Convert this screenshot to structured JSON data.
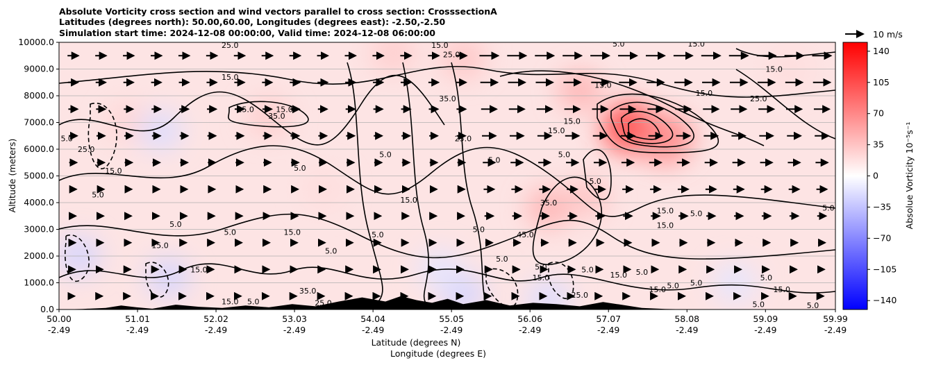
{
  "chart_data": {
    "type": "heatmap",
    "title_lines": [
      "Absolute Vorticity cross section and wind vectors parallel to cross section: CrosssectionA",
      "Latitudes (degrees north): 50.00,60.00, Longitudes (degrees east): -2.50,-2.50",
      "Simulation start time: 2024-12-08 00:00:00, Valid time: 2024-12-08 06:00:00"
    ],
    "xlabel_lines": [
      "Latitude (degrees N)",
      "Longitude (degrees E)"
    ],
    "ylabel": "Altitude (meters)",
    "x_ticks": [
      {
        "lat": "50.00",
        "lon": "-2.49"
      },
      {
        "lat": "51.01",
        "lon": "-2.49"
      },
      {
        "lat": "52.02",
        "lon": "-2.49"
      },
      {
        "lat": "53.03",
        "lon": "-2.49"
      },
      {
        "lat": "54.04",
        "lon": "-2.49"
      },
      {
        "lat": "55.05",
        "lon": "-2.49"
      },
      {
        "lat": "56.06",
        "lon": "-2.49"
      },
      {
        "lat": "57.07",
        "lon": "-2.49"
      },
      {
        "lat": "58.08",
        "lon": "-2.49"
      },
      {
        "lat": "59.09",
        "lon": "-2.49"
      },
      {
        "lat": "59.99",
        "lon": "-2.49"
      }
    ],
    "xlim": [
      50.0,
      59.99
    ],
    "y_ticks": [
      "0.0",
      "1000.0",
      "2000.0",
      "3000.0",
      "4000.0",
      "5000.0",
      "6000.0",
      "7000.0",
      "8000.0",
      "9000.0",
      "10000.0"
    ],
    "ylim": [
      0,
      10000
    ],
    "grid": "horizontal",
    "colorbar": {
      "label": "Absolue Vorticity 10⁻⁵s⁻¹",
      "ticks": [
        "140",
        "105",
        "70",
        "35",
        "0",
        "−35",
        "−70",
        "−105",
        "−140"
      ],
      "range": [
        -150,
        150
      ],
      "colormap": "bwr",
      "low_color": "#0000ff",
      "mid_color": "#ffffff",
      "high_color": "#ff0000"
    },
    "quiver_key": {
      "label": "10 m/s"
    },
    "vorticity_features": [
      {
        "lat": 57.35,
        "alt": 6800,
        "value": 110
      },
      {
        "lat": 57.8,
        "alt": 6400,
        "value": 70
      },
      {
        "lat": 56.7,
        "alt": 8200,
        "value": 45
      },
      {
        "lat": 56.3,
        "alt": 3800,
        "value": 45
      },
      {
        "lat": 56.8,
        "alt": 4200,
        "value": 35
      },
      {
        "lat": 54.3,
        "alt": 9600,
        "value": 30
      },
      {
        "lat": 55.2,
        "alt": 9400,
        "value": 35
      },
      {
        "lat": 50.9,
        "alt": 7000,
        "value": 25
      },
      {
        "lat": 52.7,
        "alt": 7200,
        "value": 30
      },
      {
        "lat": 53.4,
        "alt": 4500,
        "value": 20
      },
      {
        "lat": 59.4,
        "alt": 9000,
        "value": 20
      },
      {
        "lat": 51.3,
        "alt": 6700,
        "value": -20
      },
      {
        "lat": 50.25,
        "alt": 2000,
        "value": -25
      },
      {
        "lat": 51.4,
        "alt": 1200,
        "value": -25
      },
      {
        "lat": 55.2,
        "alt": 600,
        "value": -25
      },
      {
        "lat": 56.3,
        "alt": 400,
        "value": -20
      },
      {
        "lat": 58.7,
        "alt": 1000,
        "value": -15
      },
      {
        "lat": 54.9,
        "alt": 1500,
        "value": -15
      }
    ],
    "contour_labels": [
      {
        "text": "25.0",
        "lat": 52.2,
        "alt": 9900
      },
      {
        "text": "25.0",
        "lat": 55.05,
        "alt": 9550
      },
      {
        "text": "15.0",
        "lat": 54.9,
        "alt": 9900
      },
      {
        "text": "5.0",
        "lat": 57.2,
        "alt": 9950
      },
      {
        "text": "15.0",
        "lat": 58.2,
        "alt": 9950
      },
      {
        "text": "15.0",
        "lat": 59.2,
        "alt": 9000
      },
      {
        "text": "15.0",
        "lat": 57.0,
        "alt": 8400
      },
      {
        "text": "15.0",
        "lat": 58.3,
        "alt": 8100
      },
      {
        "text": "25.0",
        "lat": 59.0,
        "alt": 7900
      },
      {
        "text": "35.0",
        "lat": 52.8,
        "alt": 7250
      },
      {
        "text": "35.0",
        "lat": 55.0,
        "alt": 7900
      },
      {
        "text": "15.0",
        "lat": 56.6,
        "alt": 7050
      },
      {
        "text": "5.0",
        "lat": 50.1,
        "alt": 6400
      },
      {
        "text": "25.0",
        "lat": 50.35,
        "alt": 6000
      },
      {
        "text": "15.0",
        "lat": 50.7,
        "alt": 5200
      },
      {
        "text": "5.0",
        "lat": 50.5,
        "alt": 4300
      },
      {
        "text": "25.0",
        "lat": 52.4,
        "alt": 7500
      },
      {
        "text": "15.0",
        "lat": 52.2,
        "alt": 8700
      },
      {
        "text": "5.0",
        "lat": 53.1,
        "alt": 5300
      },
      {
        "text": "15.0",
        "lat": 52.9,
        "alt": 7500
      },
      {
        "text": "5.0",
        "lat": 54.2,
        "alt": 5800
      },
      {
        "text": "15.0",
        "lat": 54.5,
        "alt": 4100
      },
      {
        "text": "25.0",
        "lat": 55.2,
        "alt": 6400
      },
      {
        "text": "5.0",
        "lat": 55.6,
        "alt": 5600
      },
      {
        "text": "15.0",
        "lat": 56.4,
        "alt": 6700
      },
      {
        "text": "5.0",
        "lat": 56.5,
        "alt": 5800
      },
      {
        "text": "5.0",
        "lat": 56.9,
        "alt": 4800
      },
      {
        "text": "35.0",
        "lat": 56.3,
        "alt": 4000
      },
      {
        "text": "45.0",
        "lat": 56.0,
        "alt": 2800
      },
      {
        "text": "15.0",
        "lat": 57.8,
        "alt": 3700
      },
      {
        "text": "15.0",
        "lat": 57.8,
        "alt": 3150
      },
      {
        "text": "5.0",
        "lat": 58.2,
        "alt": 3600
      },
      {
        "text": "5.0",
        "lat": 59.9,
        "alt": 3800
      },
      {
        "text": "15.0",
        "lat": 51.3,
        "alt": 2400
      },
      {
        "text": "15.0",
        "lat": 51.8,
        "alt": 1500
      },
      {
        "text": "5.0",
        "lat": 51.5,
        "alt": 3200
      },
      {
        "text": "5.0",
        "lat": 52.2,
        "alt": 2900
      },
      {
        "text": "15.0",
        "lat": 53.0,
        "alt": 2900
      },
      {
        "text": "5.0",
        "lat": 53.5,
        "alt": 2200
      },
      {
        "text": "5.0",
        "lat": 54.1,
        "alt": 2800
      },
      {
        "text": "5.0",
        "lat": 55.4,
        "alt": 3000
      },
      {
        "text": "5.0",
        "lat": 55.7,
        "alt": 1900
      },
      {
        "text": "5.0",
        "lat": 56.2,
        "alt": 1600
      },
      {
        "text": "5.0",
        "lat": 56.8,
        "alt": 1500
      },
      {
        "text": "15.0",
        "lat": 56.2,
        "alt": 1200
      },
      {
        "text": "15.0",
        "lat": 57.2,
        "alt": 1300
      },
      {
        "text": "15.0",
        "lat": 57.7,
        "alt": 750
      },
      {
        "text": "5.0",
        "lat": 57.9,
        "alt": 900
      },
      {
        "text": "5.0",
        "lat": 58.2,
        "alt": 1000
      },
      {
        "text": "5.0",
        "lat": 59.1,
        "alt": 1200
      },
      {
        "text": "15.0",
        "lat": 59.3,
        "alt": 750
      },
      {
        "text": "5.0",
        "lat": 59.0,
        "alt": 200
      },
      {
        "text": "5.0",
        "lat": 57.5,
        "alt": 1400
      },
      {
        "text": "25.0",
        "lat": 56.7,
        "alt": 550
      },
      {
        "text": "35.0",
        "lat": 53.2,
        "alt": 700
      },
      {
        "text": "25.0",
        "lat": 53.4,
        "alt": 250
      },
      {
        "text": "15.0",
        "lat": 52.2,
        "alt": 300
      },
      {
        "text": "5.0",
        "lat": 52.5,
        "alt": 300
      },
      {
        "text": "5.0",
        "lat": 59.7,
        "alt": 150
      }
    ],
    "terrain": [
      {
        "lat": 50.0,
        "alt": 0
      },
      {
        "lat": 50.3,
        "alt": 20
      },
      {
        "lat": 50.6,
        "alt": 60
      },
      {
        "lat": 50.8,
        "alt": 150
      },
      {
        "lat": 51.0,
        "alt": 80
      },
      {
        "lat": 51.2,
        "alt": 30
      },
      {
        "lat": 51.5,
        "alt": 180
      },
      {
        "lat": 51.8,
        "alt": 100
      },
      {
        "lat": 52.1,
        "alt": 60
      },
      {
        "lat": 52.4,
        "alt": 150
      },
      {
        "lat": 52.7,
        "alt": 80
      },
      {
        "lat": 53.0,
        "alt": 200
      },
      {
        "lat": 53.3,
        "alt": 120
      },
      {
        "lat": 53.6,
        "alt": 300
      },
      {
        "lat": 53.9,
        "alt": 450
      },
      {
        "lat": 54.2,
        "alt": 300
      },
      {
        "lat": 54.4,
        "alt": 500
      },
      {
        "lat": 54.6,
        "alt": 350
      },
      {
        "lat": 54.8,
        "alt": 250
      },
      {
        "lat": 55.0,
        "alt": 400
      },
      {
        "lat": 55.2,
        "alt": 200
      },
      {
        "lat": 55.5,
        "alt": 350
      },
      {
        "lat": 55.8,
        "alt": 150
      },
      {
        "lat": 56.1,
        "alt": 250
      },
      {
        "lat": 56.4,
        "alt": 200
      },
      {
        "lat": 56.7,
        "alt": 120
      },
      {
        "lat": 57.0,
        "alt": 280
      },
      {
        "lat": 57.3,
        "alt": 150
      },
      {
        "lat": 57.5,
        "alt": 60
      },
      {
        "lat": 57.8,
        "alt": 20
      },
      {
        "lat": 58.2,
        "alt": 0
      },
      {
        "lat": 59.0,
        "alt": 0
      },
      {
        "lat": 59.99,
        "alt": 0
      }
    ]
  }
}
